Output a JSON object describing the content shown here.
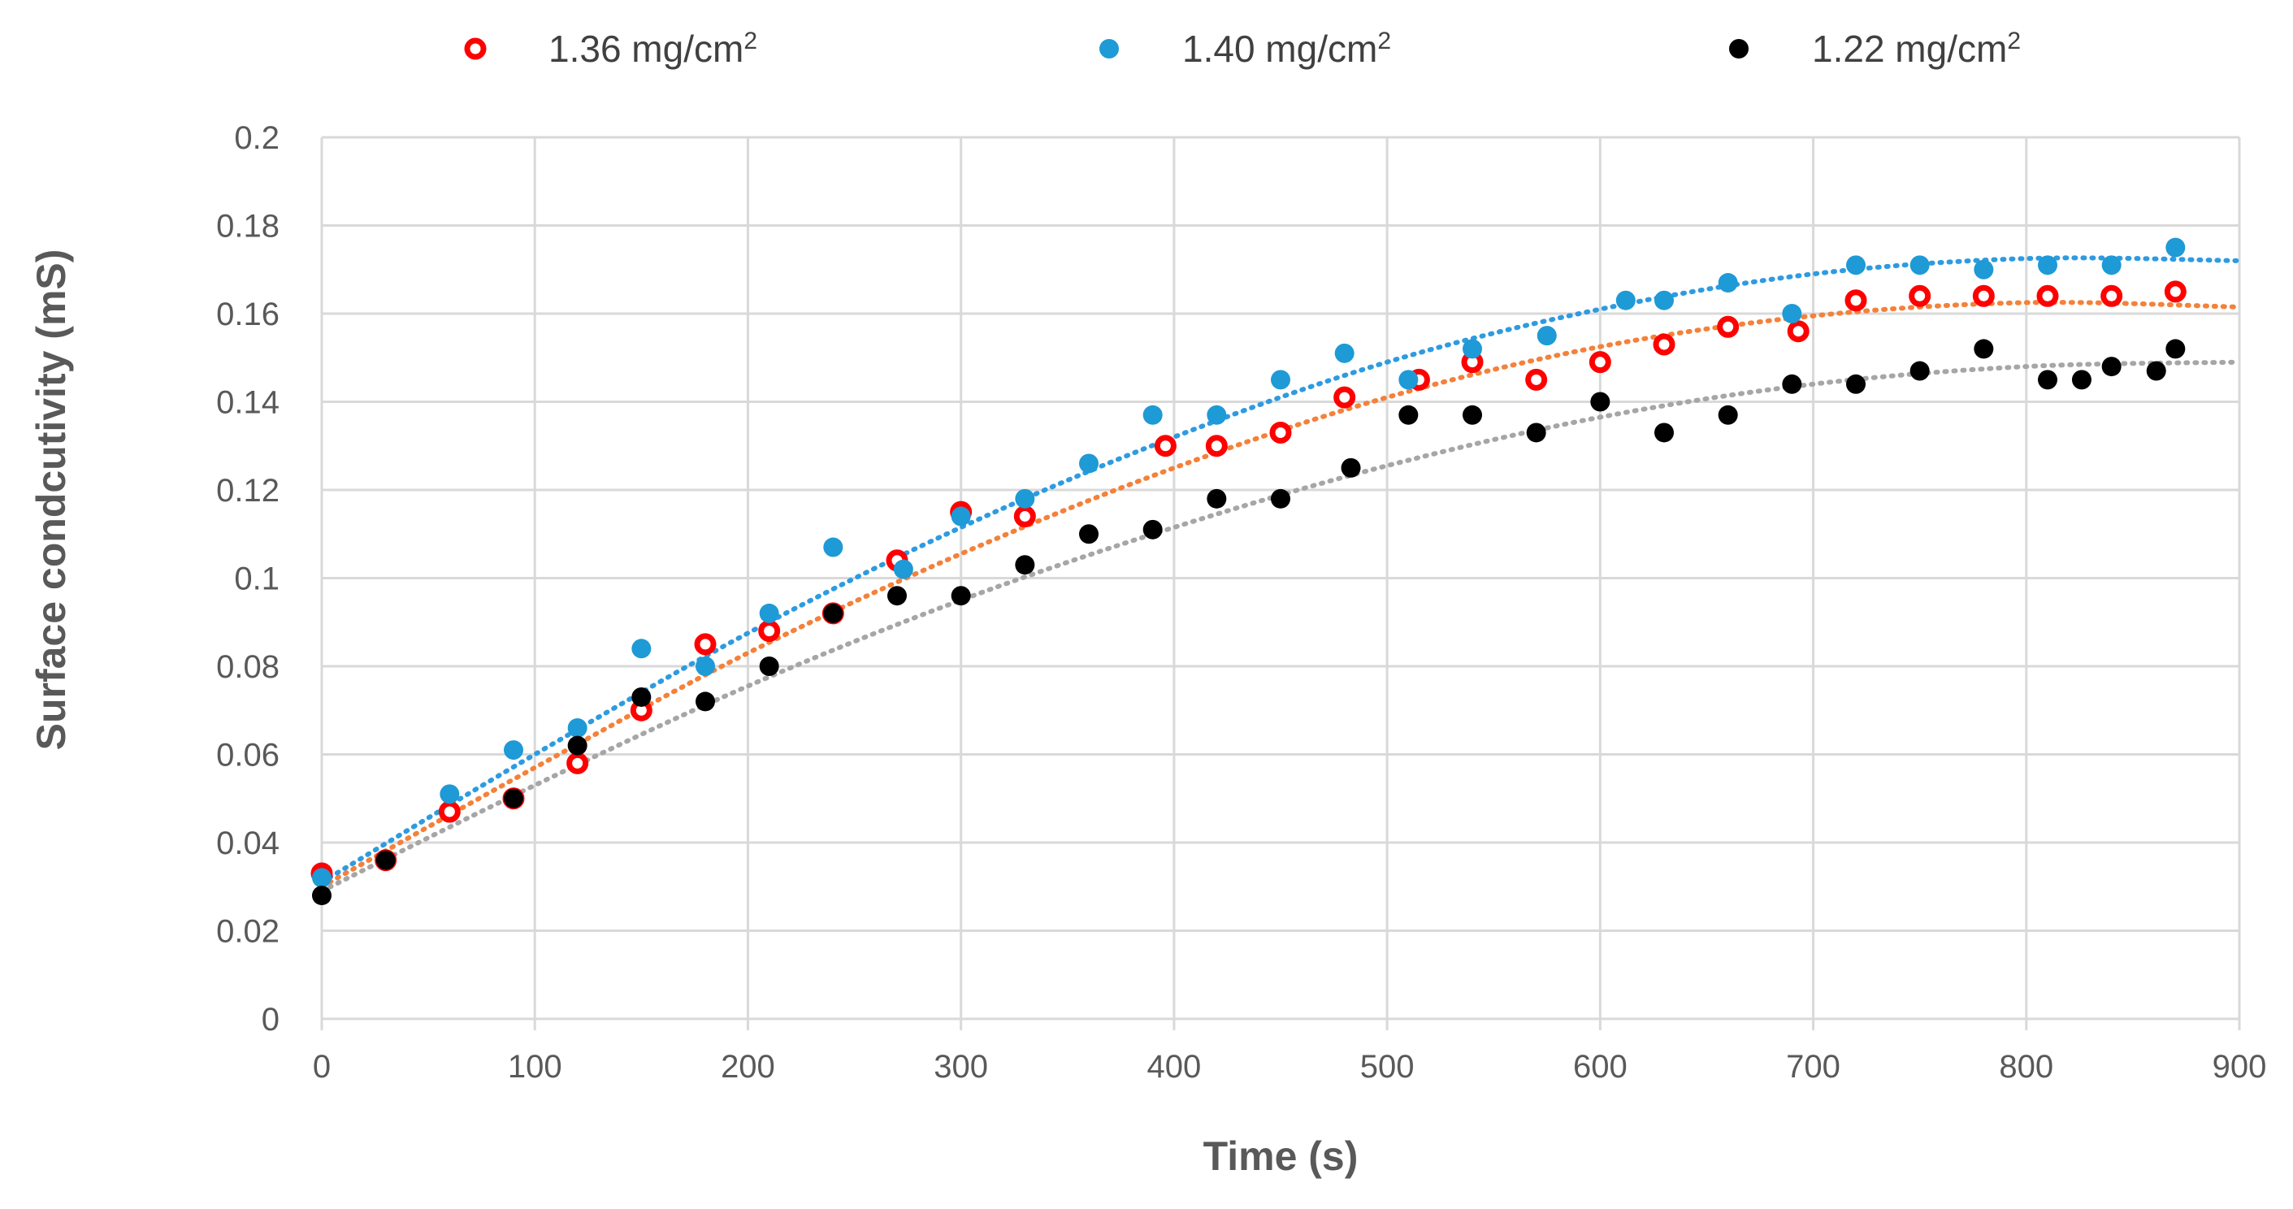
{
  "chart_data": {
    "type": "scatter",
    "title": "",
    "xlabel": "Time (s)",
    "ylabel": "Surface condcutivity (mS)",
    "xlim": [
      0,
      900
    ],
    "ylim": [
      0,
      0.2
    ],
    "grid": true,
    "legend_position": "top",
    "x_ticks": [
      "0",
      "100",
      "200",
      "300",
      "400",
      "500",
      "600",
      "700",
      "800",
      "900"
    ],
    "y_ticks": [
      "0",
      "0.02",
      "0.04",
      "0.06",
      "0.08",
      "0.1",
      "0.12",
      "0.14",
      "0.16",
      "0.18",
      "0.2"
    ],
    "series": [
      {
        "name": "1.36 mg/cm²",
        "legend_main": "1.36 mg/cm",
        "legend_sup": "2",
        "marker": "ring",
        "color": "#ff0000",
        "fill": "#ffffff",
        "trend_color": "#f4813a",
        "points": [
          [
            0,
            0.033
          ],
          [
            30,
            0.036
          ],
          [
            60,
            0.047
          ],
          [
            90,
            0.05
          ],
          [
            120,
            0.058
          ],
          [
            150,
            0.07
          ],
          [
            180,
            0.085
          ],
          [
            210,
            0.088
          ],
          [
            240,
            0.092
          ],
          [
            270,
            0.104
          ],
          [
            300,
            0.115
          ],
          [
            330,
            0.114
          ],
          [
            396,
            0.13
          ],
          [
            420,
            0.13
          ],
          [
            450,
            0.133
          ],
          [
            480,
            0.141
          ],
          [
            515,
            0.145
          ],
          [
            540,
            0.149
          ],
          [
            570,
            0.145
          ],
          [
            600,
            0.149
          ],
          [
            630,
            0.153
          ],
          [
            660,
            0.157
          ],
          [
            693,
            0.156
          ],
          [
            720,
            0.163
          ],
          [
            750,
            0.164
          ],
          [
            780,
            0.164
          ],
          [
            810,
            0.164
          ],
          [
            840,
            0.164
          ],
          [
            870,
            0.165
          ]
        ],
        "trend_points": [
          [
            0,
            0.03
          ],
          [
            100,
            0.057
          ],
          [
            200,
            0.083
          ],
          [
            300,
            0.1055
          ],
          [
            400,
            0.125
          ],
          [
            500,
            0.141
          ],
          [
            600,
            0.1525
          ],
          [
            700,
            0.1595
          ],
          [
            800,
            0.1625
          ],
          [
            900,
            0.1615
          ]
        ]
      },
      {
        "name": "1.40 mg/cm²",
        "legend_main": "1.40 mg/cm",
        "legend_sup": "2",
        "marker": "dot",
        "color": "#1e9ad6",
        "fill": "#1e9ad6",
        "trend_color": "#2e9be0",
        "points": [
          [
            0,
            0.032
          ],
          [
            30,
            0.036
          ],
          [
            60,
            0.051
          ],
          [
            90,
            0.061
          ],
          [
            120,
            0.066
          ],
          [
            150,
            0.084
          ],
          [
            180,
            0.08
          ],
          [
            210,
            0.092
          ],
          [
            240,
            0.107
          ],
          [
            273,
            0.102
          ],
          [
            300,
            0.114
          ],
          [
            330,
            0.118
          ],
          [
            360,
            0.126
          ],
          [
            390,
            0.137
          ],
          [
            420,
            0.137
          ],
          [
            450,
            0.145
          ],
          [
            480,
            0.151
          ],
          [
            510,
            0.145
          ],
          [
            540,
            0.152
          ],
          [
            575,
            0.155
          ],
          [
            612,
            0.163
          ],
          [
            630,
            0.163
          ],
          [
            660,
            0.167
          ],
          [
            690,
            0.16
          ],
          [
            720,
            0.171
          ],
          [
            750,
            0.171
          ],
          [
            780,
            0.17
          ],
          [
            810,
            0.171
          ],
          [
            840,
            0.171
          ],
          [
            870,
            0.175
          ]
        ],
        "trend_points": [
          [
            0,
            0.031
          ],
          [
            100,
            0.06
          ],
          [
            200,
            0.0875
          ],
          [
            300,
            0.1115
          ],
          [
            400,
            0.132
          ],
          [
            500,
            0.149
          ],
          [
            600,
            0.161
          ],
          [
            700,
            0.169
          ],
          [
            800,
            0.1725
          ],
          [
            900,
            0.172
          ]
        ]
      },
      {
        "name": "1.22 mg/cm²",
        "legend_main": "1.22 mg/cm",
        "legend_sup": "2",
        "marker": "dot",
        "color": "#000000",
        "fill": "#000000",
        "trend_color": "#a6a6a6",
        "points": [
          [
            0,
            0.028
          ],
          [
            30,
            0.036
          ],
          [
            90,
            0.05
          ],
          [
            120,
            0.062
          ],
          [
            150,
            0.073
          ],
          [
            180,
            0.072
          ],
          [
            210,
            0.08
          ],
          [
            240,
            0.092
          ],
          [
            270,
            0.096
          ],
          [
            300,
            0.096
          ],
          [
            330,
            0.103
          ],
          [
            360,
            0.11
          ],
          [
            390,
            0.111
          ],
          [
            420,
            0.118
          ],
          [
            450,
            0.118
          ],
          [
            483,
            0.125
          ],
          [
            510,
            0.137
          ],
          [
            540,
            0.137
          ],
          [
            570,
            0.133
          ],
          [
            600,
            0.14
          ],
          [
            630,
            0.133
          ],
          [
            660,
            0.137
          ],
          [
            690,
            0.144
          ],
          [
            720,
            0.144
          ],
          [
            750,
            0.147
          ],
          [
            780,
            0.152
          ],
          [
            810,
            0.145
          ],
          [
            826,
            0.145
          ],
          [
            840,
            0.148
          ],
          [
            861,
            0.147
          ],
          [
            870,
            0.152
          ]
        ],
        "trend_points": [
          [
            0,
            0.029
          ],
          [
            100,
            0.053
          ],
          [
            200,
            0.0755
          ],
          [
            300,
            0.095
          ],
          [
            400,
            0.1115
          ],
          [
            500,
            0.1255
          ],
          [
            600,
            0.1365
          ],
          [
            700,
            0.144
          ],
          [
            800,
            0.148
          ],
          [
            900,
            0.149
          ]
        ]
      }
    ]
  }
}
